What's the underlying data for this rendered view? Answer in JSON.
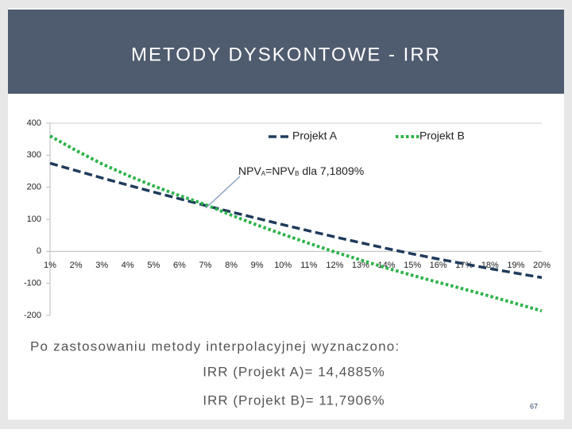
{
  "header": {
    "title": "METODY DYSKONTOWE - IRR"
  },
  "chart_data": {
    "type": "line",
    "categories": [
      "1%",
      "2%",
      "3%",
      "4%",
      "5%",
      "6%",
      "7%",
      "8%",
      "9%",
      "10%",
      "11%",
      "12%",
      "13%",
      "14%",
      "15%",
      "16%",
      "17%",
      "18%",
      "19%",
      "20%"
    ],
    "series": [
      {
        "name": "Projekt A",
        "color": "#1f3b5c",
        "values": [
          275,
          252,
          229,
          207,
          185,
          164,
          143,
          123,
          103,
          83,
          64,
          45,
          27,
          9,
          -8,
          -24,
          -39,
          -54,
          -68,
          -82
        ]
      },
      {
        "name": "Projekt B",
        "color": "#2db34a",
        "values": [
          360,
          315,
          273,
          237,
          204,
          174,
          146,
          113,
          82,
          53,
          25,
          -2,
          -27,
          -52,
          -75,
          -97,
          -118,
          -140,
          -163,
          -186
        ]
      }
    ],
    "ylim": [
      -200,
      400
    ],
    "yticks": [
      -200,
      -100,
      0,
      100,
      200,
      300,
      400
    ],
    "annotation": [
      "NPV",
      "A",
      "=NPV",
      "B",
      " dla 7,1809%"
    ],
    "legend": "top"
  },
  "text": {
    "intro": "Po zastosowaniu metody interpolacyjnej wyznaczono:",
    "result_a": "IRR (Projekt A)= 14,4885%",
    "result_b": "IRR (Projekt B)= 11,7906%"
  },
  "page_number": "67"
}
